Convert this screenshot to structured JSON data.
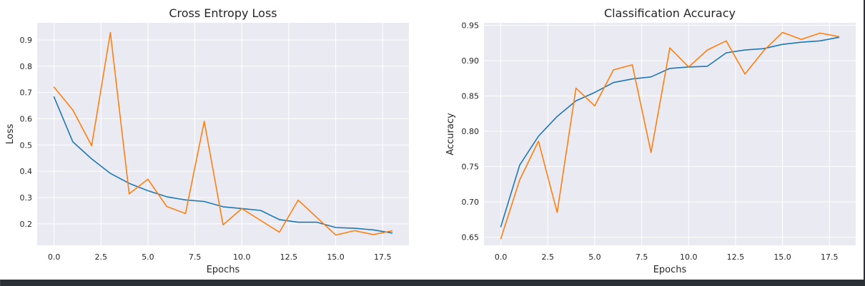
{
  "colors": {
    "background": "#2b2f36",
    "plot_face": "#eaeaf2",
    "grid": "#ffffff",
    "train": "#1f77b4",
    "val": "#ff7f0e"
  },
  "chart_data": [
    {
      "type": "line",
      "title": "Cross Entropy Loss",
      "xlabel": "Epochs",
      "ylabel": "Loss",
      "xlim": [
        -0.9,
        18.9
      ],
      "ylim": [
        0.118,
        0.965
      ],
      "xticks": [
        0,
        2.5,
        5,
        7.5,
        10,
        12.5,
        15,
        17.5
      ],
      "xtick_labels": [
        "0.0",
        "2.5",
        "5.0",
        "7.5",
        "10.0",
        "12.5",
        "15.0",
        "17.5"
      ],
      "yticks": [
        0.2,
        0.3,
        0.4,
        0.5,
        0.6,
        0.7,
        0.8,
        0.9
      ],
      "ytick_labels": [
        "0.2",
        "0.3",
        "0.4",
        "0.5",
        "0.6",
        "0.7",
        "0.8",
        "0.9"
      ],
      "grid": true,
      "legend": false,
      "x": [
        0,
        1,
        2,
        3,
        4,
        5,
        6,
        7,
        8,
        9,
        10,
        11,
        12,
        13,
        14,
        15,
        16,
        17,
        18
      ],
      "series": [
        {
          "color": "#1f77b4",
          "values": [
            0.683,
            0.512,
            0.447,
            0.392,
            0.354,
            0.326,
            0.303,
            0.291,
            0.285,
            0.265,
            0.258,
            0.251,
            0.216,
            0.206,
            0.206,
            0.186,
            0.183,
            0.177,
            0.165
          ]
        },
        {
          "color": "#ff7f0e",
          "values": [
            0.72,
            0.633,
            0.497,
            0.928,
            0.314,
            0.37,
            0.266,
            0.239,
            0.59,
            0.196,
            0.258,
            0.213,
            0.168,
            0.29,
            0.224,
            0.157,
            0.174,
            0.159,
            0.173
          ]
        }
      ]
    },
    {
      "type": "line",
      "title": "Classification Accuracy",
      "xlabel": "Epochs",
      "ylabel": "Accuracy",
      "xlim": [
        -0.9,
        18.9
      ],
      "ylim": [
        0.6385,
        0.9535
      ],
      "xticks": [
        0,
        2.5,
        5,
        7.5,
        10,
        12.5,
        15,
        17.5
      ],
      "xtick_labels": [
        "0.0",
        "2.5",
        "5.0",
        "7.5",
        "10.0",
        "12.5",
        "15.0",
        "17.5"
      ],
      "yticks": [
        0.65,
        0.7,
        0.75,
        0.8,
        0.85,
        0.9,
        0.95
      ],
      "ytick_labels": [
        "0.65",
        "0.70",
        "0.75",
        "0.80",
        "0.85",
        "0.90",
        "0.95"
      ],
      "grid": true,
      "legend": false,
      "x": [
        0,
        1,
        2,
        3,
        4,
        5,
        6,
        7,
        8,
        9,
        10,
        11,
        12,
        13,
        14,
        15,
        16,
        17,
        18
      ],
      "series": [
        {
          "color": "#1f77b4",
          "values": [
            0.665,
            0.752,
            0.793,
            0.821,
            0.843,
            0.855,
            0.869,
            0.874,
            0.877,
            0.889,
            0.891,
            0.892,
            0.911,
            0.915,
            0.917,
            0.923,
            0.926,
            0.928,
            0.933
          ]
        },
        {
          "color": "#ff7f0e",
          "values": [
            0.648,
            0.731,
            0.786,
            0.685,
            0.861,
            0.836,
            0.887,
            0.894,
            0.77,
            0.918,
            0.891,
            0.915,
            0.928,
            0.881,
            0.914,
            0.94,
            0.93,
            0.939,
            0.934
          ]
        }
      ]
    }
  ]
}
